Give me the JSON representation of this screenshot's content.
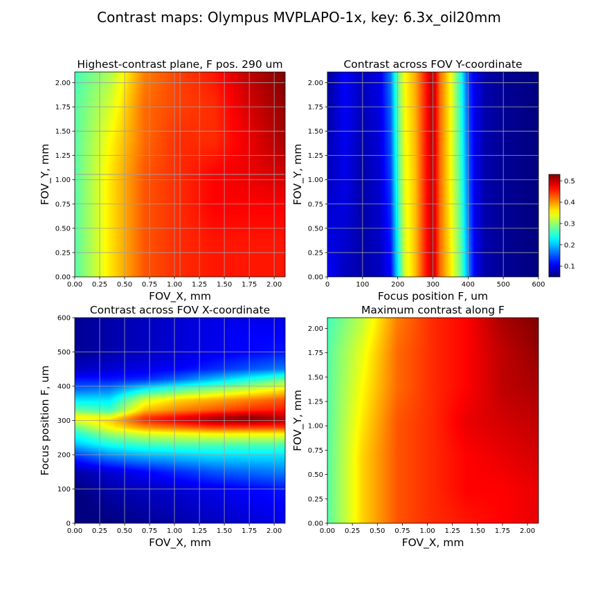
{
  "figure": {
    "title": "Contrast maps: Olympus MVPLAPO-1x, key: 6.3x_oil20mm"
  },
  "chart_data": [
    {
      "type": "heatmap",
      "title": "Highest-contrast plane, F pos. 290 um",
      "xlabel": "FOV_X, mm",
      "ylabel": "FOV_Y, mm",
      "xlim": [
        0,
        2.11
      ],
      "ylim": [
        0,
        2.11
      ],
      "xticks": [
        "0.00",
        "0.25",
        "0.50",
        "0.75",
        "1.00",
        "1.25",
        "1.50",
        "1.75",
        "2.00"
      ],
      "yticks": [
        "0.00",
        "0.25",
        "0.50",
        "0.75",
        "1.00",
        "1.25",
        "1.50",
        "1.75",
        "2.00"
      ],
      "x": [
        0.0,
        0.35,
        0.7,
        1.05,
        1.4,
        1.75,
        2.11
      ],
      "y": [
        0.0,
        0.35,
        0.7,
        1.05,
        1.4,
        1.75,
        2.11
      ],
      "z": [
        [
          0.27,
          0.36,
          0.43,
          0.45,
          0.46,
          0.46,
          0.46
        ],
        [
          0.27,
          0.36,
          0.43,
          0.45,
          0.46,
          0.46,
          0.46
        ],
        [
          0.27,
          0.36,
          0.43,
          0.45,
          0.47,
          0.47,
          0.47
        ],
        [
          0.27,
          0.36,
          0.43,
          0.45,
          0.47,
          0.48,
          0.49
        ],
        [
          0.27,
          0.35,
          0.42,
          0.45,
          0.45,
          0.48,
          0.51
        ],
        [
          0.27,
          0.33,
          0.42,
          0.44,
          0.45,
          0.49,
          0.52
        ],
        [
          0.26,
          0.31,
          0.41,
          0.44,
          0.46,
          0.5,
          0.53
        ]
      ],
      "crosshair": [
        1.055,
        1.055
      ],
      "grid": true
    },
    {
      "type": "heatmap",
      "title": "Contrast across FOV Y-coordinate",
      "xlabel": "Focus position F, um",
      "ylabel": "FOV_Y, mm",
      "xlim": [
        0,
        600
      ],
      "ylim": [
        0,
        2.11
      ],
      "xticks": [
        "0",
        "100",
        "200",
        "300",
        "400",
        "500",
        "600"
      ],
      "yticks": [
        "0.00",
        "0.25",
        "0.50",
        "0.75",
        "1.00",
        "1.25",
        "1.50",
        "1.75",
        "2.00"
      ],
      "x": [
        0,
        50,
        100,
        150,
        180,
        200,
        220,
        250,
        280,
        300,
        320,
        350,
        380,
        400,
        420,
        450,
        500,
        600
      ],
      "y": [
        0.0,
        1.0,
        2.11
      ],
      "z": [
        [
          0.11,
          0.08,
          0.07,
          0.08,
          0.11,
          0.22,
          0.33,
          0.38,
          0.46,
          0.5,
          0.42,
          0.36,
          0.28,
          0.18,
          0.1,
          0.07,
          0.06,
          0.05
        ],
        [
          0.08,
          0.1,
          0.07,
          0.09,
          0.14,
          0.26,
          0.34,
          0.38,
          0.46,
          0.5,
          0.42,
          0.35,
          0.26,
          0.16,
          0.1,
          0.07,
          0.06,
          0.05
        ],
        [
          0.06,
          0.11,
          0.08,
          0.1,
          0.17,
          0.28,
          0.35,
          0.39,
          0.46,
          0.51,
          0.42,
          0.35,
          0.24,
          0.14,
          0.1,
          0.07,
          0.06,
          0.05
        ]
      ],
      "grid": true
    },
    {
      "type": "heatmap",
      "title": "Contrast across FOV X-coordinate",
      "xlabel": "FOV_X, mm",
      "ylabel": "Focus position F, um",
      "xlim": [
        0,
        2.11
      ],
      "ylim": [
        0,
        600
      ],
      "xticks": [
        "0.00",
        "0.25",
        "0.50",
        "0.75",
        "1.00",
        "1.25",
        "1.50",
        "1.75",
        "2.00"
      ],
      "yticks": [
        "0",
        "100",
        "200",
        "300",
        "400",
        "500",
        "600"
      ],
      "x": [
        0.0,
        0.35,
        0.7,
        1.05,
        1.4,
        1.75,
        2.11
      ],
      "y": [
        0,
        100,
        150,
        200,
        230,
        260,
        280,
        300,
        310,
        330,
        360,
        390,
        420,
        450,
        500,
        550,
        600
      ],
      "z": [
        [
          0.04,
          0.05,
          0.06,
          0.07,
          0.08,
          0.09,
          0.1
        ],
        [
          0.05,
          0.07,
          0.08,
          0.09,
          0.1,
          0.11,
          0.12
        ],
        [
          0.07,
          0.09,
          0.11,
          0.13,
          0.15,
          0.16,
          0.17
        ],
        [
          0.14,
          0.18,
          0.2,
          0.21,
          0.22,
          0.22,
          0.22
        ],
        [
          0.2,
          0.24,
          0.26,
          0.27,
          0.27,
          0.27,
          0.27
        ],
        [
          0.24,
          0.3,
          0.33,
          0.34,
          0.35,
          0.35,
          0.35
        ],
        [
          0.28,
          0.35,
          0.4,
          0.42,
          0.44,
          0.44,
          0.44
        ],
        [
          0.34,
          0.37,
          0.45,
          0.48,
          0.51,
          0.52,
          0.5
        ],
        [
          0.35,
          0.34,
          0.44,
          0.47,
          0.5,
          0.52,
          0.5
        ],
        [
          0.28,
          0.26,
          0.38,
          0.41,
          0.43,
          0.45,
          0.46
        ],
        [
          0.22,
          0.22,
          0.33,
          0.37,
          0.39,
          0.41,
          0.43
        ],
        [
          0.16,
          0.17,
          0.23,
          0.27,
          0.3,
          0.33,
          0.36
        ],
        [
          0.12,
          0.12,
          0.13,
          0.16,
          0.2,
          0.24,
          0.28
        ],
        [
          0.08,
          0.09,
          0.1,
          0.11,
          0.13,
          0.15,
          0.17
        ],
        [
          0.06,
          0.07,
          0.08,
          0.09,
          0.1,
          0.11,
          0.12
        ],
        [
          0.06,
          0.07,
          0.08,
          0.09,
          0.1,
          0.11,
          0.11
        ],
        [
          0.06,
          0.07,
          0.08,
          0.09,
          0.1,
          0.1,
          0.1
        ]
      ],
      "grid": true
    },
    {
      "type": "heatmap",
      "title": "Maximum contrast along F",
      "xlabel": "FOV_X, mm",
      "ylabel": "FOV_Y, mm",
      "xlim": [
        0,
        2.11
      ],
      "ylim": [
        0,
        2.11
      ],
      "xticks": [
        "0.00",
        "0.25",
        "0.50",
        "0.75",
        "1.00",
        "1.25",
        "1.50",
        "1.75",
        "2.00"
      ],
      "yticks": [
        "0.00",
        "0.25",
        "0.50",
        "0.75",
        "1.00",
        "1.25",
        "1.50",
        "1.75",
        "2.00"
      ],
      "x": [
        0.0,
        0.35,
        0.7,
        1.05,
        1.4,
        1.75,
        2.11
      ],
      "y": [
        0.0,
        0.35,
        0.7,
        1.05,
        1.4,
        1.75,
        2.11
      ],
      "z": [
        [
          0.27,
          0.37,
          0.43,
          0.45,
          0.46,
          0.47,
          0.48
        ],
        [
          0.27,
          0.37,
          0.43,
          0.45,
          0.47,
          0.47,
          0.48
        ],
        [
          0.27,
          0.37,
          0.43,
          0.45,
          0.47,
          0.48,
          0.49
        ],
        [
          0.27,
          0.36,
          0.43,
          0.45,
          0.48,
          0.49,
          0.5
        ],
        [
          0.27,
          0.35,
          0.42,
          0.45,
          0.47,
          0.5,
          0.51
        ],
        [
          0.27,
          0.34,
          0.42,
          0.45,
          0.47,
          0.5,
          0.52
        ],
        [
          0.26,
          0.32,
          0.41,
          0.45,
          0.47,
          0.51,
          0.53
        ]
      ],
      "grid": false
    }
  ],
  "colorbar": {
    "colormap": "jet",
    "range": [
      0.05,
      0.53
    ],
    "ticks": [
      "0.1",
      "0.2",
      "0.3",
      "0.4",
      "0.5"
    ]
  },
  "colors": {
    "grid": "#a0a0a0",
    "axes": "#000000"
  }
}
